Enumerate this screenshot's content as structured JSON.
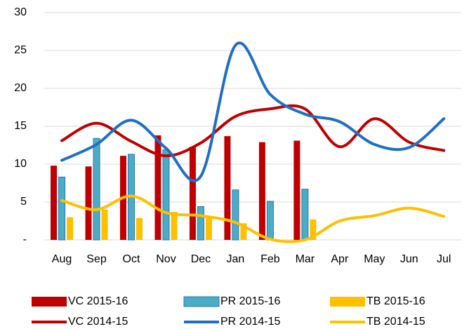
{
  "chart_data": {
    "type": "combo",
    "categories": [
      "Aug",
      "Sep",
      "Oct",
      "Nov",
      "Dec",
      "Jan",
      "Feb",
      "Mar",
      "Apr",
      "May",
      "Jun",
      "Jul"
    ],
    "series": [
      {
        "name": "VC 2015-16",
        "type": "bar",
        "color": "#c00000",
        "values": [
          9.8,
          9.7,
          11.1,
          13.8,
          12.3,
          13.7,
          12.9,
          13.1,
          null,
          null,
          null,
          null
        ]
      },
      {
        "name": "PR 2015-16",
        "type": "bar",
        "color": "#4bacc6",
        "border": "#2e75b6",
        "values": [
          8.3,
          13.4,
          11.3,
          11.9,
          4.4,
          6.6,
          5.1,
          6.7,
          null,
          null,
          null,
          null
        ]
      },
      {
        "name": "TB 2015-16",
        "type": "bar",
        "color": "#ffc000",
        "values": [
          3.0,
          4.0,
          2.9,
          3.7,
          3.0,
          2.2,
          0,
          2.7,
          null,
          null,
          null,
          null
        ]
      },
      {
        "name": "VC 2014-15",
        "type": "line",
        "color": "#c00000",
        "values": [
          13.1,
          15.4,
          13.0,
          11.1,
          12.8,
          16.3,
          17.3,
          17.3,
          12.3,
          16.0,
          12.9,
          11.8
        ]
      },
      {
        "name": "PR 2014-15",
        "type": "line",
        "color": "#1f6fc5",
        "values": [
          10.5,
          12.6,
          15.8,
          12.1,
          8.4,
          25.7,
          19.2,
          16.6,
          15.6,
          12.6,
          12.2,
          16.0
        ]
      },
      {
        "name": "TB 2014-15",
        "type": "line",
        "color": "#ffc000",
        "values": [
          5.2,
          4.0,
          5.8,
          3.6,
          3.2,
          2.3,
          0.1,
          0,
          2.5,
          3.2,
          4.2,
          3.1
        ]
      }
    ],
    "ylim": [
      0,
      30
    ],
    "yticks": [
      {
        "value": 0,
        "label": "-"
      },
      5,
      10,
      15,
      20,
      25,
      30
    ],
    "grid": true,
    "legend": "bottom"
  }
}
